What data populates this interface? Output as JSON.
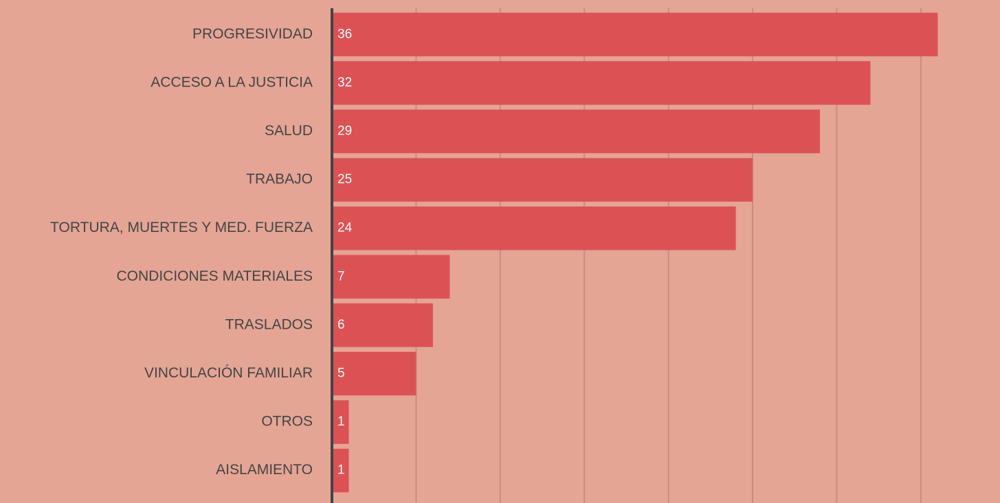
{
  "chart_data": {
    "type": "hbar",
    "categories": [
      "PROGRESIVIDAD",
      "ACCESO A LA JUSTICIA",
      "SALUD",
      "TRABAJO",
      "TORTURA, MUERTES Y MED. FUERZA",
      "CONDICIONES MATERIALES",
      "TRASLADOS",
      "VINCULACIÓN FAMILIAR",
      "OTROS",
      "AISLAMIENTO"
    ],
    "values": [
      36,
      32,
      29,
      25,
      24,
      7,
      6,
      5,
      1,
      1
    ],
    "color": "#dc5254",
    "xlim": [
      0,
      39.7
    ],
    "xticks": [
      0,
      5,
      10,
      15,
      20,
      25,
      30,
      35
    ],
    "grid": true
  }
}
